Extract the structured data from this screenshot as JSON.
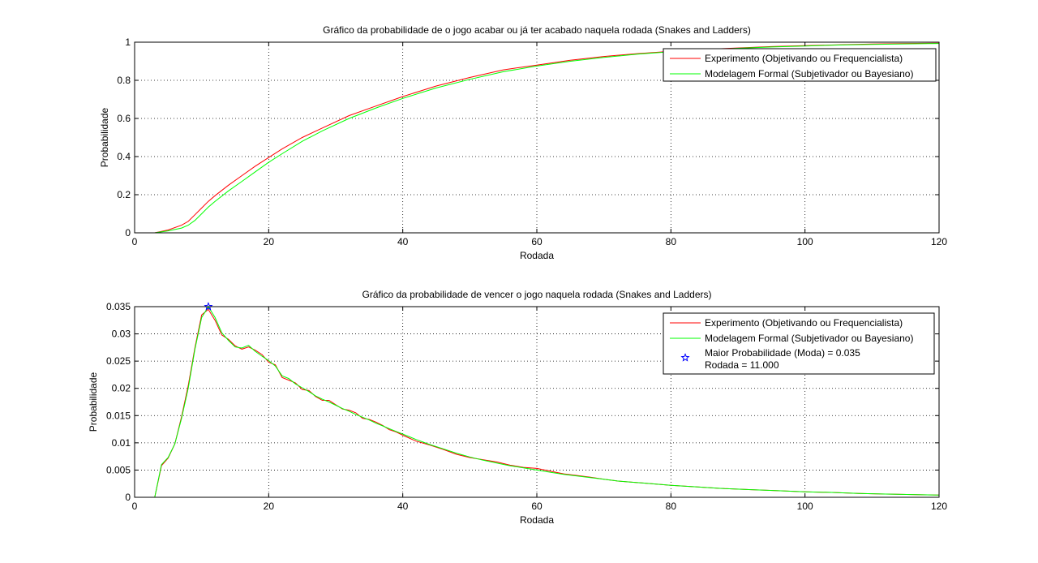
{
  "colors": {
    "experiment": "#ff0000",
    "formal": "#00ff00",
    "marker": "#0000ff",
    "axes": "#000000",
    "background": "#ffffff"
  },
  "chart_data": [
    {
      "type": "line",
      "title": "Gráfico da probabilidade de o jogo acabar ou já ter acabado naquela rodada (Snakes and Ladders)",
      "xlabel": "Rodada",
      "ylabel": "Probabilidade",
      "xlim": [
        0,
        120
      ],
      "ylim": [
        0,
        1
      ],
      "xticks": [
        0,
        20,
        40,
        60,
        80,
        100,
        120
      ],
      "xtick_labels": [
        "0",
        "20",
        "40",
        "60",
        "80",
        "100",
        "120"
      ],
      "yticks": [
        0,
        0.2,
        0.4,
        0.6,
        0.8,
        1
      ],
      "ytick_labels": [
        "0",
        "0.2",
        "0.4",
        "0.6",
        "0.8",
        "1"
      ],
      "grid": true,
      "legend_position": "top-right",
      "series": [
        {
          "name": "Experimento (Objetivando ou Frequencialista)",
          "color": "#ff0000",
          "x": [
            3,
            5,
            7,
            8,
            9,
            10,
            11,
            12,
            14,
            16,
            18,
            20,
            22,
            25,
            28,
            32,
            36,
            40,
            45,
            50,
            55,
            60,
            65,
            70,
            75,
            80,
            85,
            90,
            95,
            100,
            105,
            110,
            115,
            120
          ],
          "y": [
            0,
            0.015,
            0.04,
            0.06,
            0.095,
            0.13,
            0.165,
            0.195,
            0.25,
            0.3,
            0.35,
            0.395,
            0.44,
            0.5,
            0.55,
            0.615,
            0.665,
            0.715,
            0.77,
            0.815,
            0.855,
            0.88,
            0.905,
            0.925,
            0.94,
            0.952,
            0.962,
            0.97,
            0.977,
            0.982,
            0.986,
            0.99,
            0.993,
            0.995
          ]
        },
        {
          "name": "Modelagem Formal (Subjetivador ou Bayesiano)",
          "color": "#00ff00",
          "x": [
            3,
            5,
            7,
            8,
            9,
            10,
            11,
            12,
            14,
            16,
            18,
            20,
            22,
            25,
            28,
            32,
            36,
            40,
            45,
            50,
            55,
            60,
            65,
            70,
            75,
            80,
            85,
            90,
            95,
            100,
            105,
            110,
            115,
            120
          ],
          "y": [
            0,
            0.01,
            0.025,
            0.04,
            0.065,
            0.1,
            0.135,
            0.165,
            0.22,
            0.27,
            0.32,
            0.37,
            0.415,
            0.48,
            0.535,
            0.6,
            0.655,
            0.705,
            0.76,
            0.805,
            0.845,
            0.875,
            0.9,
            0.92,
            0.937,
            0.95,
            0.96,
            0.968,
            0.975,
            0.98,
            0.985,
            0.988,
            0.991,
            0.993
          ]
        }
      ]
    },
    {
      "type": "line",
      "title": "Gráfico da probabilidade de vencer o jogo naquela rodada (Snakes and Ladders)",
      "xlabel": "Rodada",
      "ylabel": "Probabilidade",
      "xlim": [
        0,
        120
      ],
      "ylim": [
        0,
        0.035
      ],
      "xticks": [
        0,
        20,
        40,
        60,
        80,
        100,
        120
      ],
      "xtick_labels": [
        "0",
        "20",
        "40",
        "60",
        "80",
        "100",
        "120"
      ],
      "yticks": [
        0,
        0.005,
        0.01,
        0.015,
        0.02,
        0.025,
        0.03,
        0.035
      ],
      "ytick_labels": [
        "0",
        "0.005",
        "0.01",
        "0.015",
        "0.02",
        "0.025",
        "0.03",
        "0.035"
      ],
      "grid": true,
      "legend_position": "top-right",
      "series": [
        {
          "name": "Experimento (Objetivando ou Frequencialista)",
          "color": "#ff0000",
          "x": [
            3,
            4,
            5,
            6,
            7,
            8,
            9,
            10,
            11,
            12,
            13,
            14,
            15,
            16,
            17,
            18,
            19,
            20,
            21,
            22,
            23,
            24,
            25,
            26,
            27,
            28,
            29,
            30,
            31,
            32,
            33,
            34,
            35,
            36,
            37,
            38,
            39,
            40,
            42,
            44,
            46,
            48,
            50,
            52,
            54,
            56,
            58,
            60,
            62,
            64,
            66,
            68,
            70,
            72,
            74,
            76,
            78,
            80,
            84,
            88,
            92,
            96,
            100,
            104,
            108,
            112,
            116,
            120
          ],
          "y": [
            0,
            0.0058,
            0.0072,
            0.0098,
            0.0148,
            0.0205,
            0.0275,
            0.0335,
            0.0345,
            0.0325,
            0.0298,
            0.029,
            0.0278,
            0.0272,
            0.0276,
            0.027,
            0.0262,
            0.0248,
            0.0243,
            0.022,
            0.0215,
            0.021,
            0.0198,
            0.0196,
            0.0185,
            0.0178,
            0.0178,
            0.017,
            0.0162,
            0.016,
            0.0155,
            0.0145,
            0.0143,
            0.0138,
            0.0132,
            0.0124,
            0.012,
            0.0114,
            0.0103,
            0.0096,
            0.0088,
            0.0079,
            0.0073,
            0.0069,
            0.0065,
            0.0059,
            0.0055,
            0.0053,
            0.0048,
            0.0043,
            0.004,
            0.0037,
            0.0033,
            0.003,
            0.0028,
            0.0026,
            0.0024,
            0.0022,
            0.0019,
            0.0016,
            0.0014,
            0.0012,
            0.001,
            0.0009,
            0.0007,
            0.0006,
            0.0005,
            0.0004
          ]
        },
        {
          "name": "Modelagem Formal (Subjetivador ou Bayesiano)",
          "color": "#00ff00",
          "x": [
            3,
            4,
            5,
            6,
            7,
            8,
            9,
            10,
            11,
            12,
            13,
            14,
            15,
            16,
            17,
            18,
            19,
            20,
            21,
            22,
            23,
            24,
            25,
            26,
            27,
            28,
            29,
            30,
            31,
            32,
            33,
            34,
            35,
            36,
            37,
            38,
            39,
            40,
            42,
            44,
            46,
            48,
            50,
            52,
            54,
            56,
            58,
            60,
            62,
            64,
            66,
            68,
            70,
            72,
            74,
            76,
            78,
            80,
            84,
            88,
            92,
            96,
            100,
            104,
            108,
            112,
            116,
            120
          ],
          "y": [
            0,
            0.006,
            0.0073,
            0.0098,
            0.0145,
            0.02,
            0.0272,
            0.033,
            0.035,
            0.033,
            0.0302,
            0.0288,
            0.0276,
            0.0274,
            0.0279,
            0.0268,
            0.0259,
            0.0251,
            0.0241,
            0.0223,
            0.0218,
            0.0208,
            0.0201,
            0.0194,
            0.0186,
            0.018,
            0.0175,
            0.0169,
            0.0163,
            0.0158,
            0.0152,
            0.0147,
            0.0142,
            0.0136,
            0.0131,
            0.0126,
            0.0121,
            0.0116,
            0.0106,
            0.0097,
            0.0089,
            0.0081,
            0.0074,
            0.0068,
            0.0063,
            0.0058,
            0.0054,
            0.005,
            0.0046,
            0.0042,
            0.0039,
            0.0036,
            0.0033,
            0.003,
            0.0028,
            0.0026,
            0.0024,
            0.0022,
            0.0019,
            0.0016,
            0.0014,
            0.0012,
            0.001,
            0.0009,
            0.0007,
            0.0006,
            0.0005,
            0.0004
          ]
        }
      ],
      "annotation": {
        "marker": "star",
        "x": 11,
        "y": 0.035,
        "color": "#0000ff",
        "legend_line1": "Maior Probabilidade (Moda) = 0.035",
        "legend_line2": "Rodada = 11.000"
      }
    }
  ]
}
